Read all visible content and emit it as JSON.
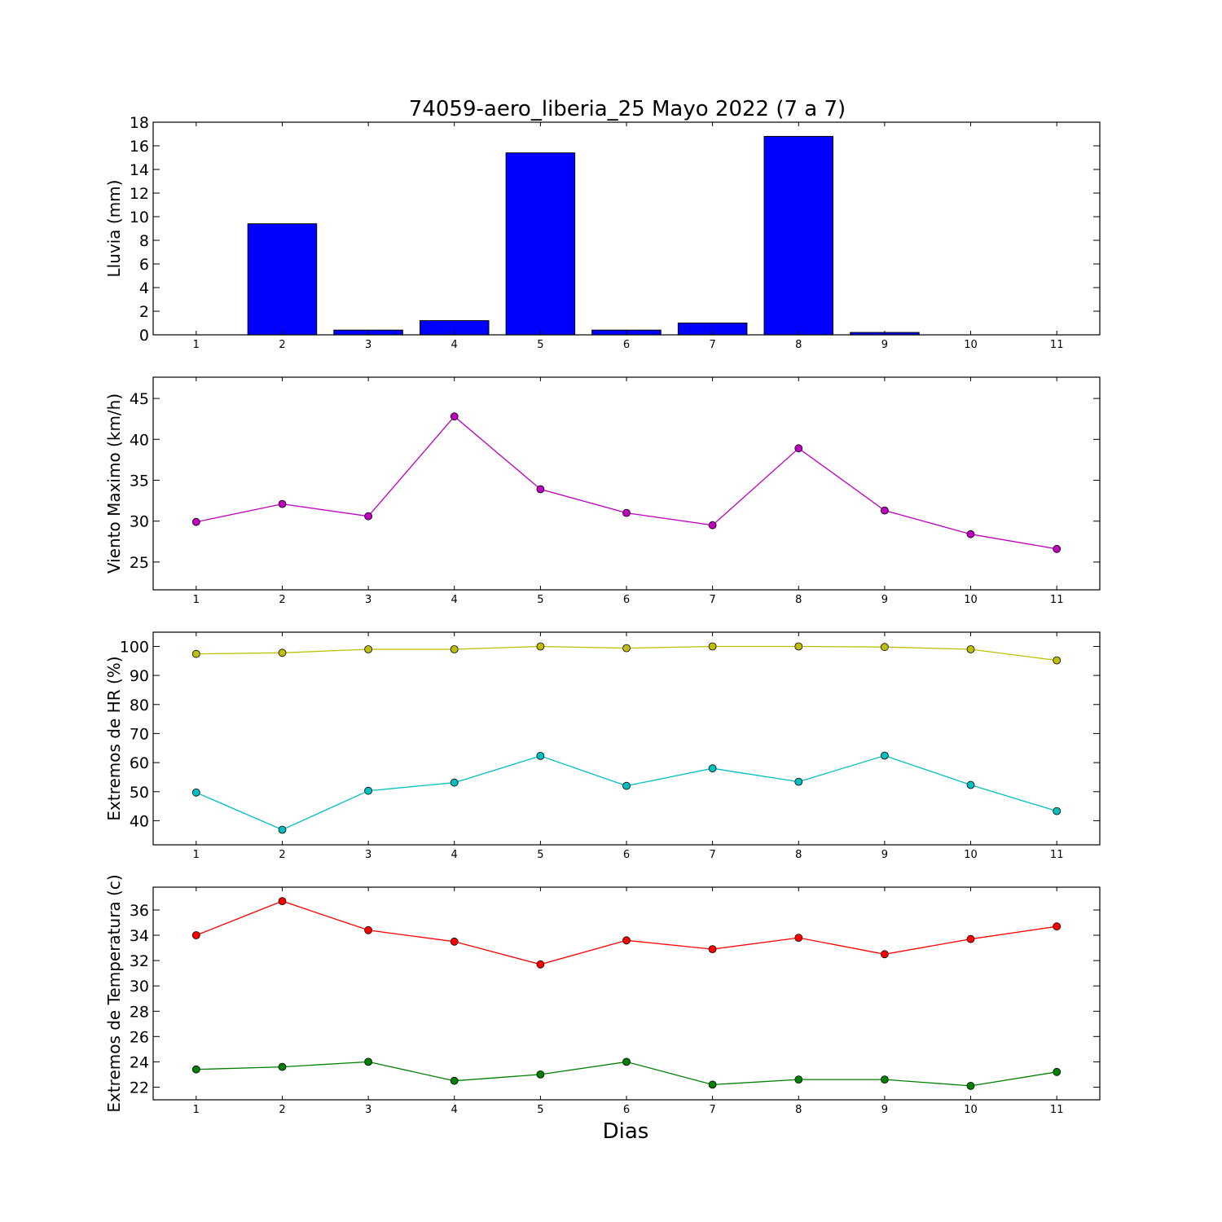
{
  "title": "74059-aero_liberia_25 Mayo 2022  (7 a 7)",
  "xlabel": "Dias",
  "chart_data": [
    {
      "type": "bar",
      "ylabel": "Lluvia (mm)",
      "x": [
        1,
        2,
        3,
        4,
        5,
        6,
        7,
        8,
        9,
        10,
        11
      ],
      "values": [
        0,
        9.4,
        0.4,
        1.2,
        15.4,
        0.4,
        1.0,
        16.8,
        0.2,
        0,
        0
      ],
      "color": "#0000ff",
      "ylim": [
        0,
        18
      ],
      "yticks": [
        0,
        2,
        4,
        6,
        8,
        10,
        12,
        14,
        16,
        18
      ],
      "xlim": [
        0.5,
        11.5
      ],
      "xticks": [
        1,
        2,
        3,
        4,
        5,
        6,
        7,
        8,
        9,
        10,
        11
      ]
    },
    {
      "type": "line",
      "ylabel": "Viento Maximo (km/h)",
      "x": [
        1,
        2,
        3,
        4,
        5,
        6,
        7,
        8,
        9,
        10,
        11
      ],
      "series": [
        {
          "values": [
            29.9,
            32.1,
            30.6,
            42.8,
            33.9,
            31.0,
            29.5,
            38.9,
            31.3,
            28.4,
            26.6
          ],
          "color": "#bf00bf"
        }
      ],
      "ylim": [
        21.6,
        47.6
      ],
      "yticks": [
        25,
        30,
        35,
        40,
        45
      ],
      "xlim": [
        0.5,
        11.5
      ],
      "xticks": [
        1,
        2,
        3,
        4,
        5,
        6,
        7,
        8,
        9,
        10,
        11
      ]
    },
    {
      "type": "line",
      "ylabel": "Extremos de HR (%)",
      "x": [
        1,
        2,
        3,
        4,
        5,
        6,
        7,
        8,
        9,
        10,
        11
      ],
      "series": [
        {
          "values": [
            97.4,
            97.8,
            99.0,
            99.0,
            100,
            99.4,
            100,
            100,
            99.8,
            99.0,
            95.2
          ],
          "color": "#bfbf00"
        },
        {
          "values": [
            49.7,
            36.9,
            50.3,
            53.1,
            62.3,
            52.0,
            58.0,
            53.4,
            62.4,
            52.3,
            43.3
          ],
          "color": "#00bfbf"
        }
      ],
      "ylim": [
        31.7,
        104.9
      ],
      "yticks": [
        40,
        50,
        60,
        70,
        80,
        90,
        100
      ],
      "xlim": [
        0.5,
        11.5
      ],
      "xticks": [
        1,
        2,
        3,
        4,
        5,
        6,
        7,
        8,
        9,
        10,
        11
      ]
    },
    {
      "type": "line",
      "ylabel": "Extremos de Temperatura (c)",
      "x": [
        1,
        2,
        3,
        4,
        5,
        6,
        7,
        8,
        9,
        10,
        11
      ],
      "series": [
        {
          "values": [
            34.0,
            36.7,
            34.4,
            33.5,
            31.7,
            33.6,
            32.9,
            33.8,
            32.5,
            33.7,
            34.7
          ],
          "color": "#ff0000"
        },
        {
          "values": [
            23.4,
            23.6,
            24.0,
            22.5,
            23.0,
            24.0,
            22.2,
            22.6,
            22.6,
            22.1,
            23.2
          ],
          "color": "#008000"
        }
      ],
      "ylim": [
        21.0,
        37.8
      ],
      "yticks": [
        22,
        24,
        26,
        28,
        30,
        32,
        34,
        36
      ],
      "xlim": [
        0.5,
        11.5
      ],
      "xticks": [
        1,
        2,
        3,
        4,
        5,
        6,
        7,
        8,
        9,
        10,
        11
      ]
    }
  ]
}
